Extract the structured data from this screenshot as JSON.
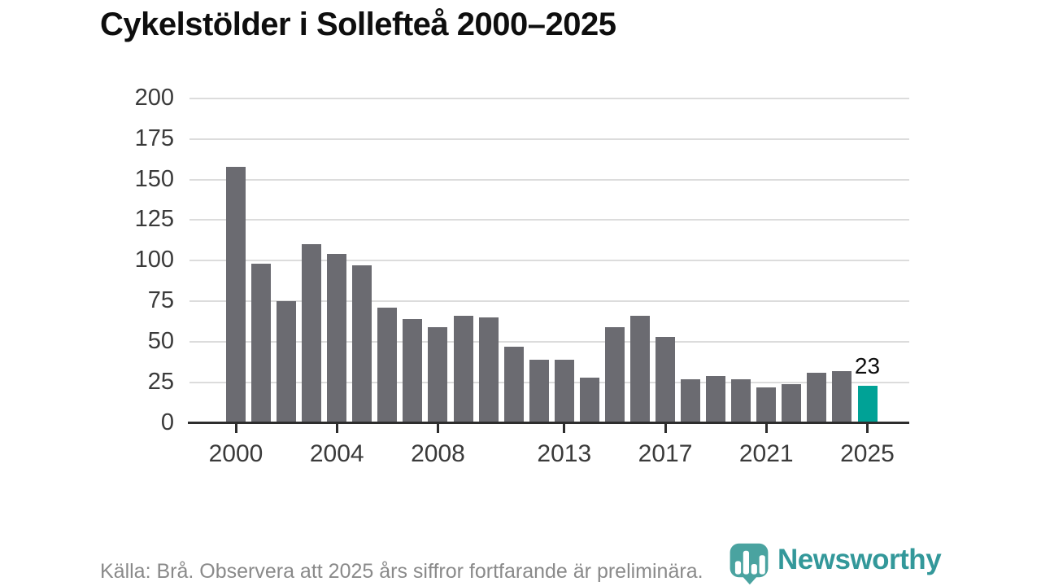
{
  "title": "Cykelstölder i Sollefteå 2000–2025",
  "footer": {
    "source_note": "Källa: Brå. Observera att 2025 års siffror fortfarande är preliminära."
  },
  "branding": {
    "logo_text": "Newsworthy",
    "logo_icon": "newsworthy-pin-icon"
  },
  "colors": {
    "bar_default": "#6b6b71",
    "bar_highlight": "#00a296",
    "gridline": "#dcdcdc",
    "axis": "#2d2d2d",
    "title_text": "#0e0e0e",
    "tick_label_text": "#3a3a3a",
    "footer_text": "#8a8a8a",
    "logo_teal": "#33989a",
    "logo_icon_teal": "#4aa3a0"
  },
  "chart_data": {
    "type": "bar",
    "title": "Cykelstölder i Sollefteå 2000–2025",
    "xlabel": "",
    "ylabel": "",
    "x": [
      2000,
      2001,
      2002,
      2003,
      2004,
      2005,
      2006,
      2007,
      2008,
      2009,
      2010,
      2011,
      2012,
      2013,
      2014,
      2015,
      2016,
      2017,
      2018,
      2019,
      2020,
      2021,
      2022,
      2023,
      2024,
      2025
    ],
    "values": [
      158,
      98,
      75,
      110,
      104,
      97,
      71,
      64,
      59,
      66,
      65,
      47,
      39,
      39,
      28,
      59,
      66,
      53,
      27,
      29,
      27,
      22,
      24,
      31,
      32,
      23
    ],
    "highlight_x": 2025,
    "highlight_value_label": "23",
    "ylim": [
      0,
      200
    ],
    "yticks": [
      0,
      25,
      50,
      75,
      100,
      125,
      150,
      175,
      200
    ],
    "xticks": [
      2000,
      2004,
      2008,
      2013,
      2017,
      2021,
      2025
    ],
    "grid": "horizontal",
    "legend": "none"
  }
}
